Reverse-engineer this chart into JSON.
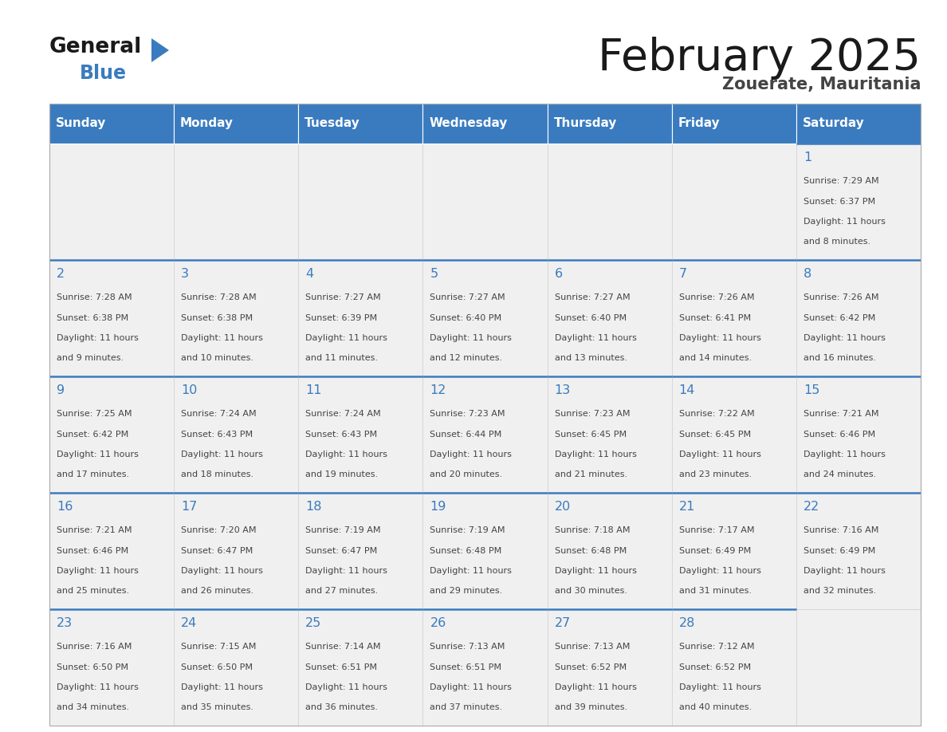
{
  "title": "February 2025",
  "subtitle": "Zouerate, Mauritania",
  "days_of_week": [
    "Sunday",
    "Monday",
    "Tuesday",
    "Wednesday",
    "Thursday",
    "Friday",
    "Saturday"
  ],
  "header_bg": "#3a7bbf",
  "header_text": "#ffffff",
  "cell_bg": "#f0f0f0",
  "day_num_color": "#3a7bbf",
  "info_text_color": "#444444",
  "border_color": "#3a7bbf",
  "title_color": "#1a1a1a",
  "subtitle_color": "#444444",
  "logo_text_color": "#1a1a1a",
  "logo_blue_color": "#3a7bbf",
  "calendar": [
    [
      null,
      null,
      null,
      null,
      null,
      null,
      1
    ],
    [
      2,
      3,
      4,
      5,
      6,
      7,
      8
    ],
    [
      9,
      10,
      11,
      12,
      13,
      14,
      15
    ],
    [
      16,
      17,
      18,
      19,
      20,
      21,
      22
    ],
    [
      23,
      24,
      25,
      26,
      27,
      28,
      null
    ]
  ],
  "day_data": {
    "1": {
      "sunrise": "7:29 AM",
      "sunset": "6:37 PM",
      "daylight": "11 hours and 8 minutes"
    },
    "2": {
      "sunrise": "7:28 AM",
      "sunset": "6:38 PM",
      "daylight": "11 hours and 9 minutes"
    },
    "3": {
      "sunrise": "7:28 AM",
      "sunset": "6:38 PM",
      "daylight": "11 hours and 10 minutes"
    },
    "4": {
      "sunrise": "7:27 AM",
      "sunset": "6:39 PM",
      "daylight": "11 hours and 11 minutes"
    },
    "5": {
      "sunrise": "7:27 AM",
      "sunset": "6:40 PM",
      "daylight": "11 hours and 12 minutes"
    },
    "6": {
      "sunrise": "7:27 AM",
      "sunset": "6:40 PM",
      "daylight": "11 hours and 13 minutes"
    },
    "7": {
      "sunrise": "7:26 AM",
      "sunset": "6:41 PM",
      "daylight": "11 hours and 14 minutes"
    },
    "8": {
      "sunrise": "7:26 AM",
      "sunset": "6:42 PM",
      "daylight": "11 hours and 16 minutes"
    },
    "9": {
      "sunrise": "7:25 AM",
      "sunset": "6:42 PM",
      "daylight": "11 hours and 17 minutes"
    },
    "10": {
      "sunrise": "7:24 AM",
      "sunset": "6:43 PM",
      "daylight": "11 hours and 18 minutes"
    },
    "11": {
      "sunrise": "7:24 AM",
      "sunset": "6:43 PM",
      "daylight": "11 hours and 19 minutes"
    },
    "12": {
      "sunrise": "7:23 AM",
      "sunset": "6:44 PM",
      "daylight": "11 hours and 20 minutes"
    },
    "13": {
      "sunrise": "7:23 AM",
      "sunset": "6:45 PM",
      "daylight": "11 hours and 21 minutes"
    },
    "14": {
      "sunrise": "7:22 AM",
      "sunset": "6:45 PM",
      "daylight": "11 hours and 23 minutes"
    },
    "15": {
      "sunrise": "7:21 AM",
      "sunset": "6:46 PM",
      "daylight": "11 hours and 24 minutes"
    },
    "16": {
      "sunrise": "7:21 AM",
      "sunset": "6:46 PM",
      "daylight": "11 hours and 25 minutes"
    },
    "17": {
      "sunrise": "7:20 AM",
      "sunset": "6:47 PM",
      "daylight": "11 hours and 26 minutes"
    },
    "18": {
      "sunrise": "7:19 AM",
      "sunset": "6:47 PM",
      "daylight": "11 hours and 27 minutes"
    },
    "19": {
      "sunrise": "7:19 AM",
      "sunset": "6:48 PM",
      "daylight": "11 hours and 29 minutes"
    },
    "20": {
      "sunrise": "7:18 AM",
      "sunset": "6:48 PM",
      "daylight": "11 hours and 30 minutes"
    },
    "21": {
      "sunrise": "7:17 AM",
      "sunset": "6:49 PM",
      "daylight": "11 hours and 31 minutes"
    },
    "22": {
      "sunrise": "7:16 AM",
      "sunset": "6:49 PM",
      "daylight": "11 hours and 32 minutes"
    },
    "23": {
      "sunrise": "7:16 AM",
      "sunset": "6:50 PM",
      "daylight": "11 hours and 34 minutes"
    },
    "24": {
      "sunrise": "7:15 AM",
      "sunset": "6:50 PM",
      "daylight": "11 hours and 35 minutes"
    },
    "25": {
      "sunrise": "7:14 AM",
      "sunset": "6:51 PM",
      "daylight": "11 hours and 36 minutes"
    },
    "26": {
      "sunrise": "7:13 AM",
      "sunset": "6:51 PM",
      "daylight": "11 hours and 37 minutes"
    },
    "27": {
      "sunrise": "7:13 AM",
      "sunset": "6:52 PM",
      "daylight": "11 hours and 39 minutes"
    },
    "28": {
      "sunrise": "7:12 AM",
      "sunset": "6:52 PM",
      "daylight": "11 hours and 40 minutes"
    }
  }
}
